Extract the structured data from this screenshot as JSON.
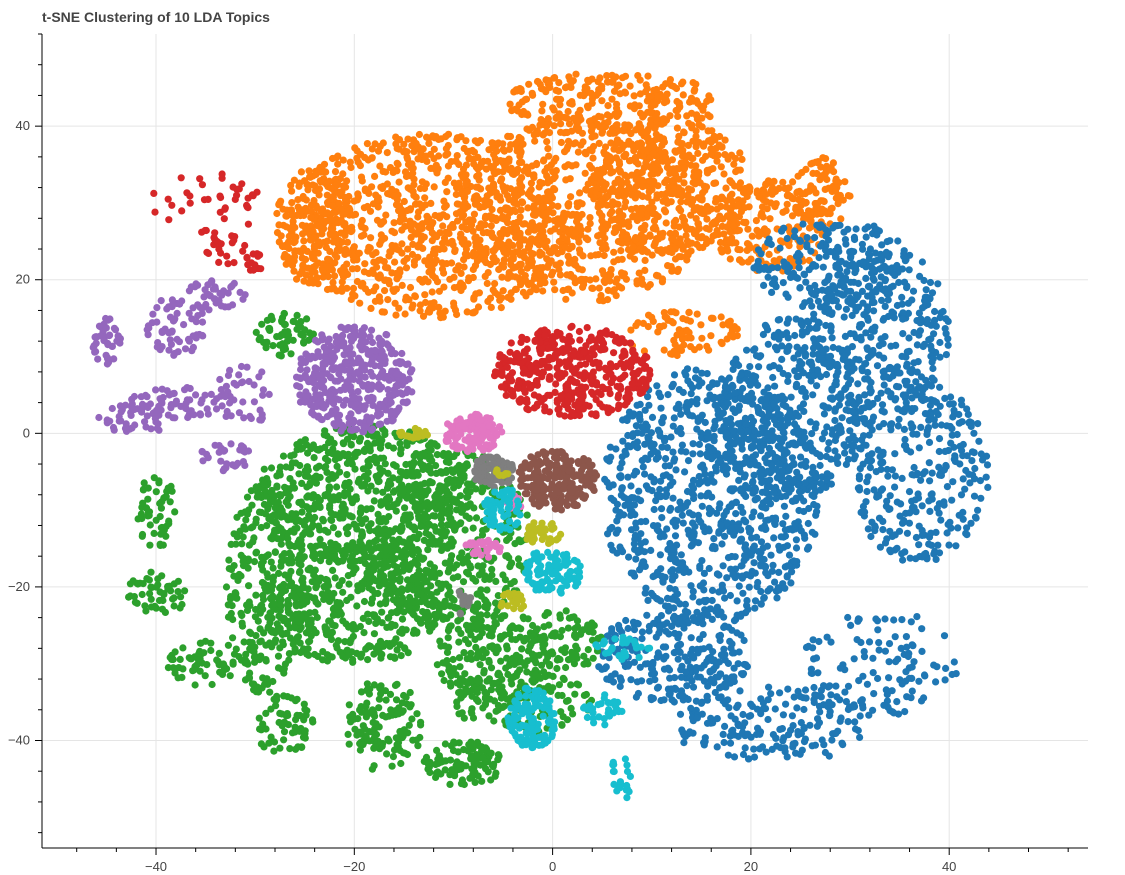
{
  "chart_data": {
    "type": "scatter",
    "title": "t-SNE Clustering of 10 LDA Topics",
    "xlabel": "",
    "ylabel": "",
    "xlim": [
      -51.5,
      54
    ],
    "ylim": [
      -54,
      52
    ],
    "x_ticks": [
      -40,
      -20,
      0,
      20,
      40
    ],
    "y_ticks": [
      -40,
      -20,
      0,
      20,
      40
    ],
    "x_tick_labels": [
      "−40",
      "−20",
      "0",
      "20",
      "40"
    ],
    "y_tick_labels": [
      "−40",
      "−20",
      "0",
      "20",
      "40"
    ],
    "grid": true,
    "legend": "none",
    "series": [
      {
        "color": "#ff7f0e",
        "regions": [
          {
            "cx": -12,
            "cy": 27,
            "rx": 15,
            "ry": 12,
            "n": 900
          },
          {
            "cx": 3,
            "cy": 29,
            "rx": 13,
            "ry": 12,
            "n": 700
          },
          {
            "cx": 12,
            "cy": 32,
            "rx": 8,
            "ry": 9,
            "n": 350
          },
          {
            "cx": 6,
            "cy": 43,
            "rx": 11,
            "ry": 4,
            "n": 250
          },
          {
            "cx": 22,
            "cy": 27,
            "rx": 6,
            "ry": 6,
            "n": 200
          },
          {
            "cx": 27,
            "cy": 31,
            "rx": 3,
            "ry": 5,
            "n": 80
          },
          {
            "cx": -24,
            "cy": 27,
            "rx": 4,
            "ry": 8,
            "n": 150
          },
          {
            "cx": 13,
            "cy": 13,
            "rx": 6,
            "ry": 3,
            "n": 80
          }
        ]
      },
      {
        "color": "#1f77b4",
        "regions": [
          {
            "cx": 16,
            "cy": -8,
            "rx": 11,
            "ry": 17,
            "n": 900
          },
          {
            "cx": 24,
            "cy": 3,
            "rx": 7,
            "ry": 12,
            "n": 400
          },
          {
            "cx": 33,
            "cy": 13,
            "rx": 7,
            "ry": 12,
            "n": 350
          },
          {
            "cx": 37,
            "cy": -5,
            "rx": 7,
            "ry": 12,
            "n": 300
          },
          {
            "cx": 28,
            "cy": 22,
            "rx": 8,
            "ry": 6,
            "n": 200
          },
          {
            "cx": 12,
            "cy": -29,
            "rx": 8,
            "ry": 6,
            "n": 250
          },
          {
            "cx": 22,
            "cy": -38,
            "rx": 10,
            "ry": 5,
            "n": 180
          },
          {
            "cx": 33,
            "cy": -30,
            "rx": 8,
            "ry": 7,
            "n": 120
          }
        ]
      },
      {
        "color": "#2ca02c",
        "regions": [
          {
            "cx": -19,
            "cy": -8,
            "rx": 11,
            "ry": 9,
            "n": 600
          },
          {
            "cx": -20,
            "cy": -22,
            "rx": 10,
            "ry": 8,
            "n": 500
          },
          {
            "cx": -10,
            "cy": -14,
            "rx": 8,
            "ry": 12,
            "n": 400
          },
          {
            "cx": -29,
            "cy": -20,
            "rx": 4,
            "ry": 14,
            "n": 250
          },
          {
            "cx": -6,
            "cy": -29,
            "rx": 6,
            "ry": 6,
            "n": 200
          },
          {
            "cx": -3,
            "cy": -35,
            "rx": 7,
            "ry": 4,
            "n": 120
          },
          {
            "cx": -17,
            "cy": -38,
            "rx": 4,
            "ry": 6,
            "n": 120
          },
          {
            "cx": -9,
            "cy": -43,
            "rx": 4,
            "ry": 3,
            "n": 100
          },
          {
            "cx": -27,
            "cy": -38,
            "rx": 3,
            "ry": 4,
            "n": 60
          },
          {
            "cx": -40,
            "cy": -10,
            "rx": 2,
            "ry": 5,
            "n": 50
          },
          {
            "cx": -40,
            "cy": -21,
            "rx": 3,
            "ry": 3,
            "n": 50
          },
          {
            "cx": -35,
            "cy": -30,
            "rx": 4,
            "ry": 3,
            "n": 60
          },
          {
            "cx": -27,
            "cy": 13,
            "rx": 3,
            "ry": 3,
            "n": 60
          },
          {
            "cx": 1,
            "cy": -27,
            "rx": 4,
            "ry": 4,
            "n": 80
          }
        ]
      },
      {
        "color": "#d62728",
        "regions": [
          {
            "cx": 2,
            "cy": 8,
            "rx": 8,
            "ry": 6,
            "n": 450
          },
          {
            "cx": -35,
            "cy": 30,
            "rx": 6,
            "ry": 4,
            "n": 40
          },
          {
            "cx": -33,
            "cy": 24,
            "rx": 2,
            "ry": 2,
            "n": 20
          },
          {
            "cx": -30,
            "cy": 22,
            "rx": 1,
            "ry": 2,
            "n": 15
          }
        ]
      },
      {
        "color": "#9467bd",
        "regions": [
          {
            "cx": -20,
            "cy": 7,
            "rx": 6,
            "ry": 7,
            "n": 400
          },
          {
            "cx": -38,
            "cy": 14,
            "rx": 3,
            "ry": 4,
            "n": 60
          },
          {
            "cx": -45,
            "cy": 12,
            "rx": 1.5,
            "ry": 3,
            "n": 40
          },
          {
            "cx": -38,
            "cy": 4,
            "rx": 5,
            "ry": 2,
            "n": 60
          },
          {
            "cx": -42,
            "cy": 2,
            "rx": 4,
            "ry": 2,
            "n": 40
          },
          {
            "cx": -34,
            "cy": 18,
            "rx": 3,
            "ry": 2,
            "n": 40
          },
          {
            "cx": -31,
            "cy": 5,
            "rx": 3,
            "ry": 4,
            "n": 40
          },
          {
            "cx": -33,
            "cy": -3,
            "rx": 3,
            "ry": 2,
            "n": 30
          }
        ]
      },
      {
        "color": "#8c564b",
        "regions": [
          {
            "cx": 0.5,
            "cy": -6,
            "rx": 4,
            "ry": 4,
            "n": 220
          }
        ]
      },
      {
        "color": "#e377c2",
        "regions": [
          {
            "cx": -8,
            "cy": 0,
            "rx": 3,
            "ry": 2.5,
            "n": 120
          },
          {
            "cx": -7,
            "cy": -15,
            "rx": 2,
            "ry": 1.2,
            "n": 30
          },
          {
            "cx": -4,
            "cy": -9,
            "rx": 1,
            "ry": 1,
            "n": 15
          }
        ]
      },
      {
        "color": "#7f7f7f",
        "regions": [
          {
            "cx": -6,
            "cy": -5,
            "rx": 2.2,
            "ry": 2,
            "n": 80
          },
          {
            "cx": -9,
            "cy": -22,
            "rx": 0.8,
            "ry": 2,
            "n": 12
          }
        ]
      },
      {
        "color": "#bcbd22",
        "regions": [
          {
            "cx": -1,
            "cy": -13,
            "rx": 2,
            "ry": 1.5,
            "n": 40
          },
          {
            "cx": -14,
            "cy": 0,
            "rx": 1.5,
            "ry": 0.8,
            "n": 20
          },
          {
            "cx": -4,
            "cy": -22,
            "rx": 1.3,
            "ry": 1.3,
            "n": 20
          },
          {
            "cx": -5,
            "cy": -5,
            "rx": 0.7,
            "ry": 0.7,
            "n": 8
          }
        ]
      },
      {
        "color": "#17becf",
        "regions": [
          {
            "cx": -2,
            "cy": -37,
            "rx": 2.5,
            "ry": 4,
            "n": 120
          },
          {
            "cx": 0,
            "cy": -18,
            "rx": 3,
            "ry": 3,
            "n": 100
          },
          {
            "cx": -5,
            "cy": -10,
            "rx": 2,
            "ry": 3,
            "n": 60
          },
          {
            "cx": 5,
            "cy": -36,
            "rx": 2,
            "ry": 2,
            "n": 30
          },
          {
            "cx": 7,
            "cy": -28,
            "rx": 3,
            "ry": 1.5,
            "n": 30
          },
          {
            "cx": 7,
            "cy": -44,
            "rx": 1,
            "ry": 4,
            "n": 20
          }
        ]
      }
    ]
  }
}
